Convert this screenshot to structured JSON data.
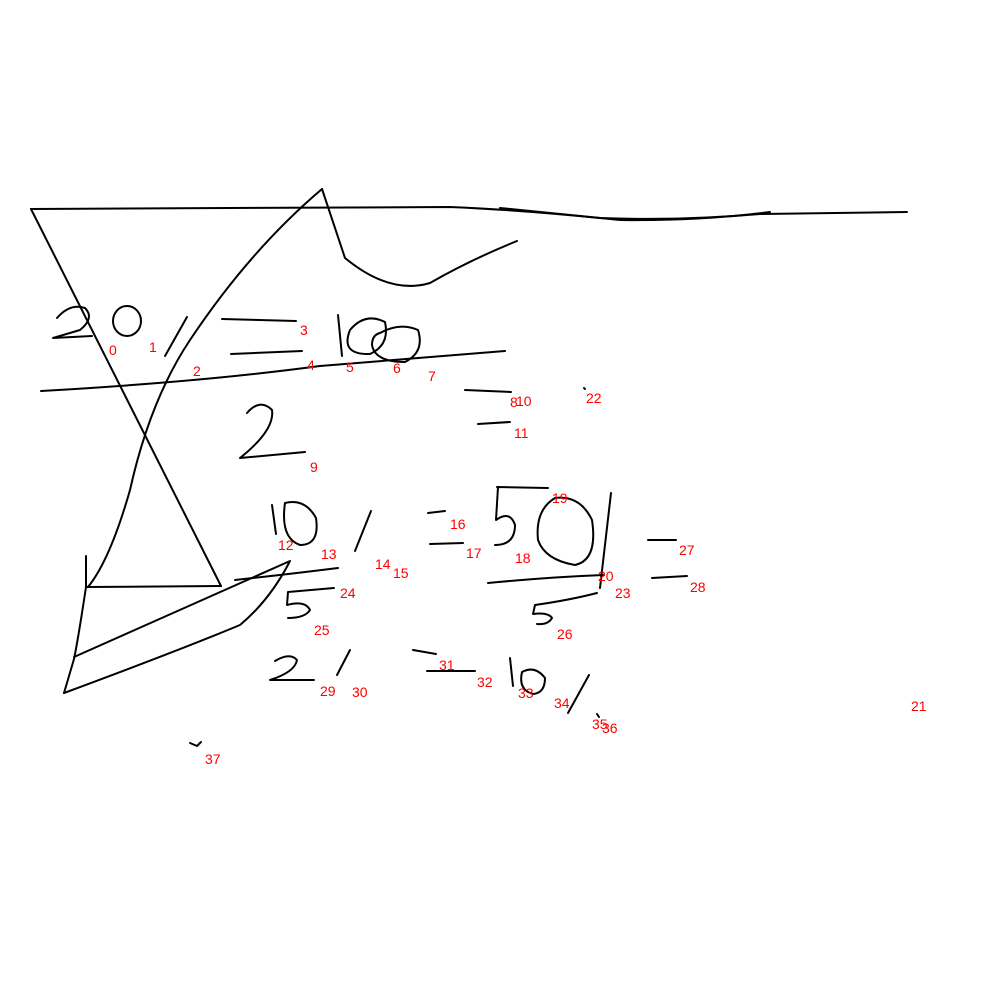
{
  "annotation_color": "#ff0000",
  "ink_color": "#000000",
  "labels": [
    "0",
    "1",
    "2",
    "3",
    "4",
    "5",
    "6",
    "7",
    "8",
    "9",
    "10",
    "11",
    "12",
    "13",
    "14",
    "15",
    "16",
    "17",
    "18",
    "19",
    "20",
    "21",
    "22",
    "23",
    "24",
    "25",
    "26",
    "27",
    "28",
    "29",
    "30",
    "31",
    "32",
    "33",
    "34",
    "35",
    "36",
    "37"
  ]
}
